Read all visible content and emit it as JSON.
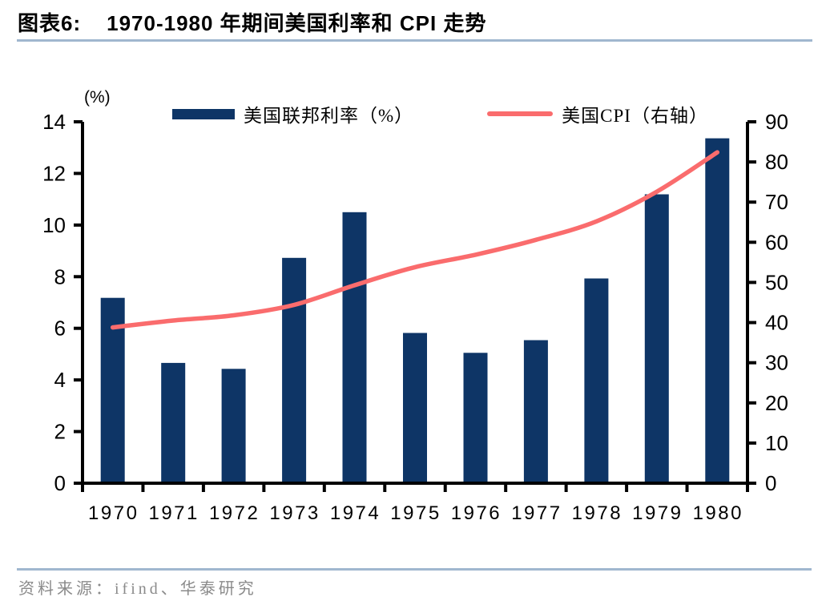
{
  "title": {
    "label": "图表6:",
    "text": "1970-1980 年期间美国利率和 CPI 走势"
  },
  "legend": [
    {
      "type": "bar",
      "label": "美国联邦利率（%）",
      "color": "#0E3566"
    },
    {
      "type": "line",
      "label": "美国CPI（右轴）",
      "color": "#FA6C6D"
    }
  ],
  "chart_data": {
    "type": "bar+line",
    "title": "1970-1980 年期间美国利率和 CPI 走势",
    "categories": [
      "1970",
      "1971",
      "1972",
      "1973",
      "1974",
      "1975",
      "1976",
      "1977",
      "1978",
      "1979",
      "1980"
    ],
    "series": [
      {
        "name": "美国联邦利率（%）",
        "type": "bar",
        "axis": "left",
        "color": "#0E3566",
        "values": [
          7.18,
          4.66,
          4.43,
          8.73,
          10.5,
          5.82,
          5.05,
          5.54,
          7.93,
          11.19,
          13.36
        ]
      },
      {
        "name": "美国CPI（右轴）",
        "type": "line",
        "axis": "right",
        "color": "#FA6C6D",
        "values": [
          38.8,
          40.5,
          41.8,
          44.4,
          49.3,
          53.8,
          56.9,
          60.6,
          65.2,
          72.6,
          82.4
        ]
      }
    ],
    "left_axis": {
      "min": 0,
      "max": 14,
      "step": 2,
      "unit": "(%)"
    },
    "right_axis": {
      "min": 0,
      "max": 90,
      "step": 10
    },
    "grid": false,
    "legend_position": "top"
  },
  "footer": {
    "source_text": "资料来源：ifind、华泰研究"
  },
  "colors": {
    "bar": "#0E3566",
    "line": "#FA6C6D",
    "rule": "#A0B7CF",
    "axis": "#000000",
    "source_text": "#8A8A8A"
  }
}
